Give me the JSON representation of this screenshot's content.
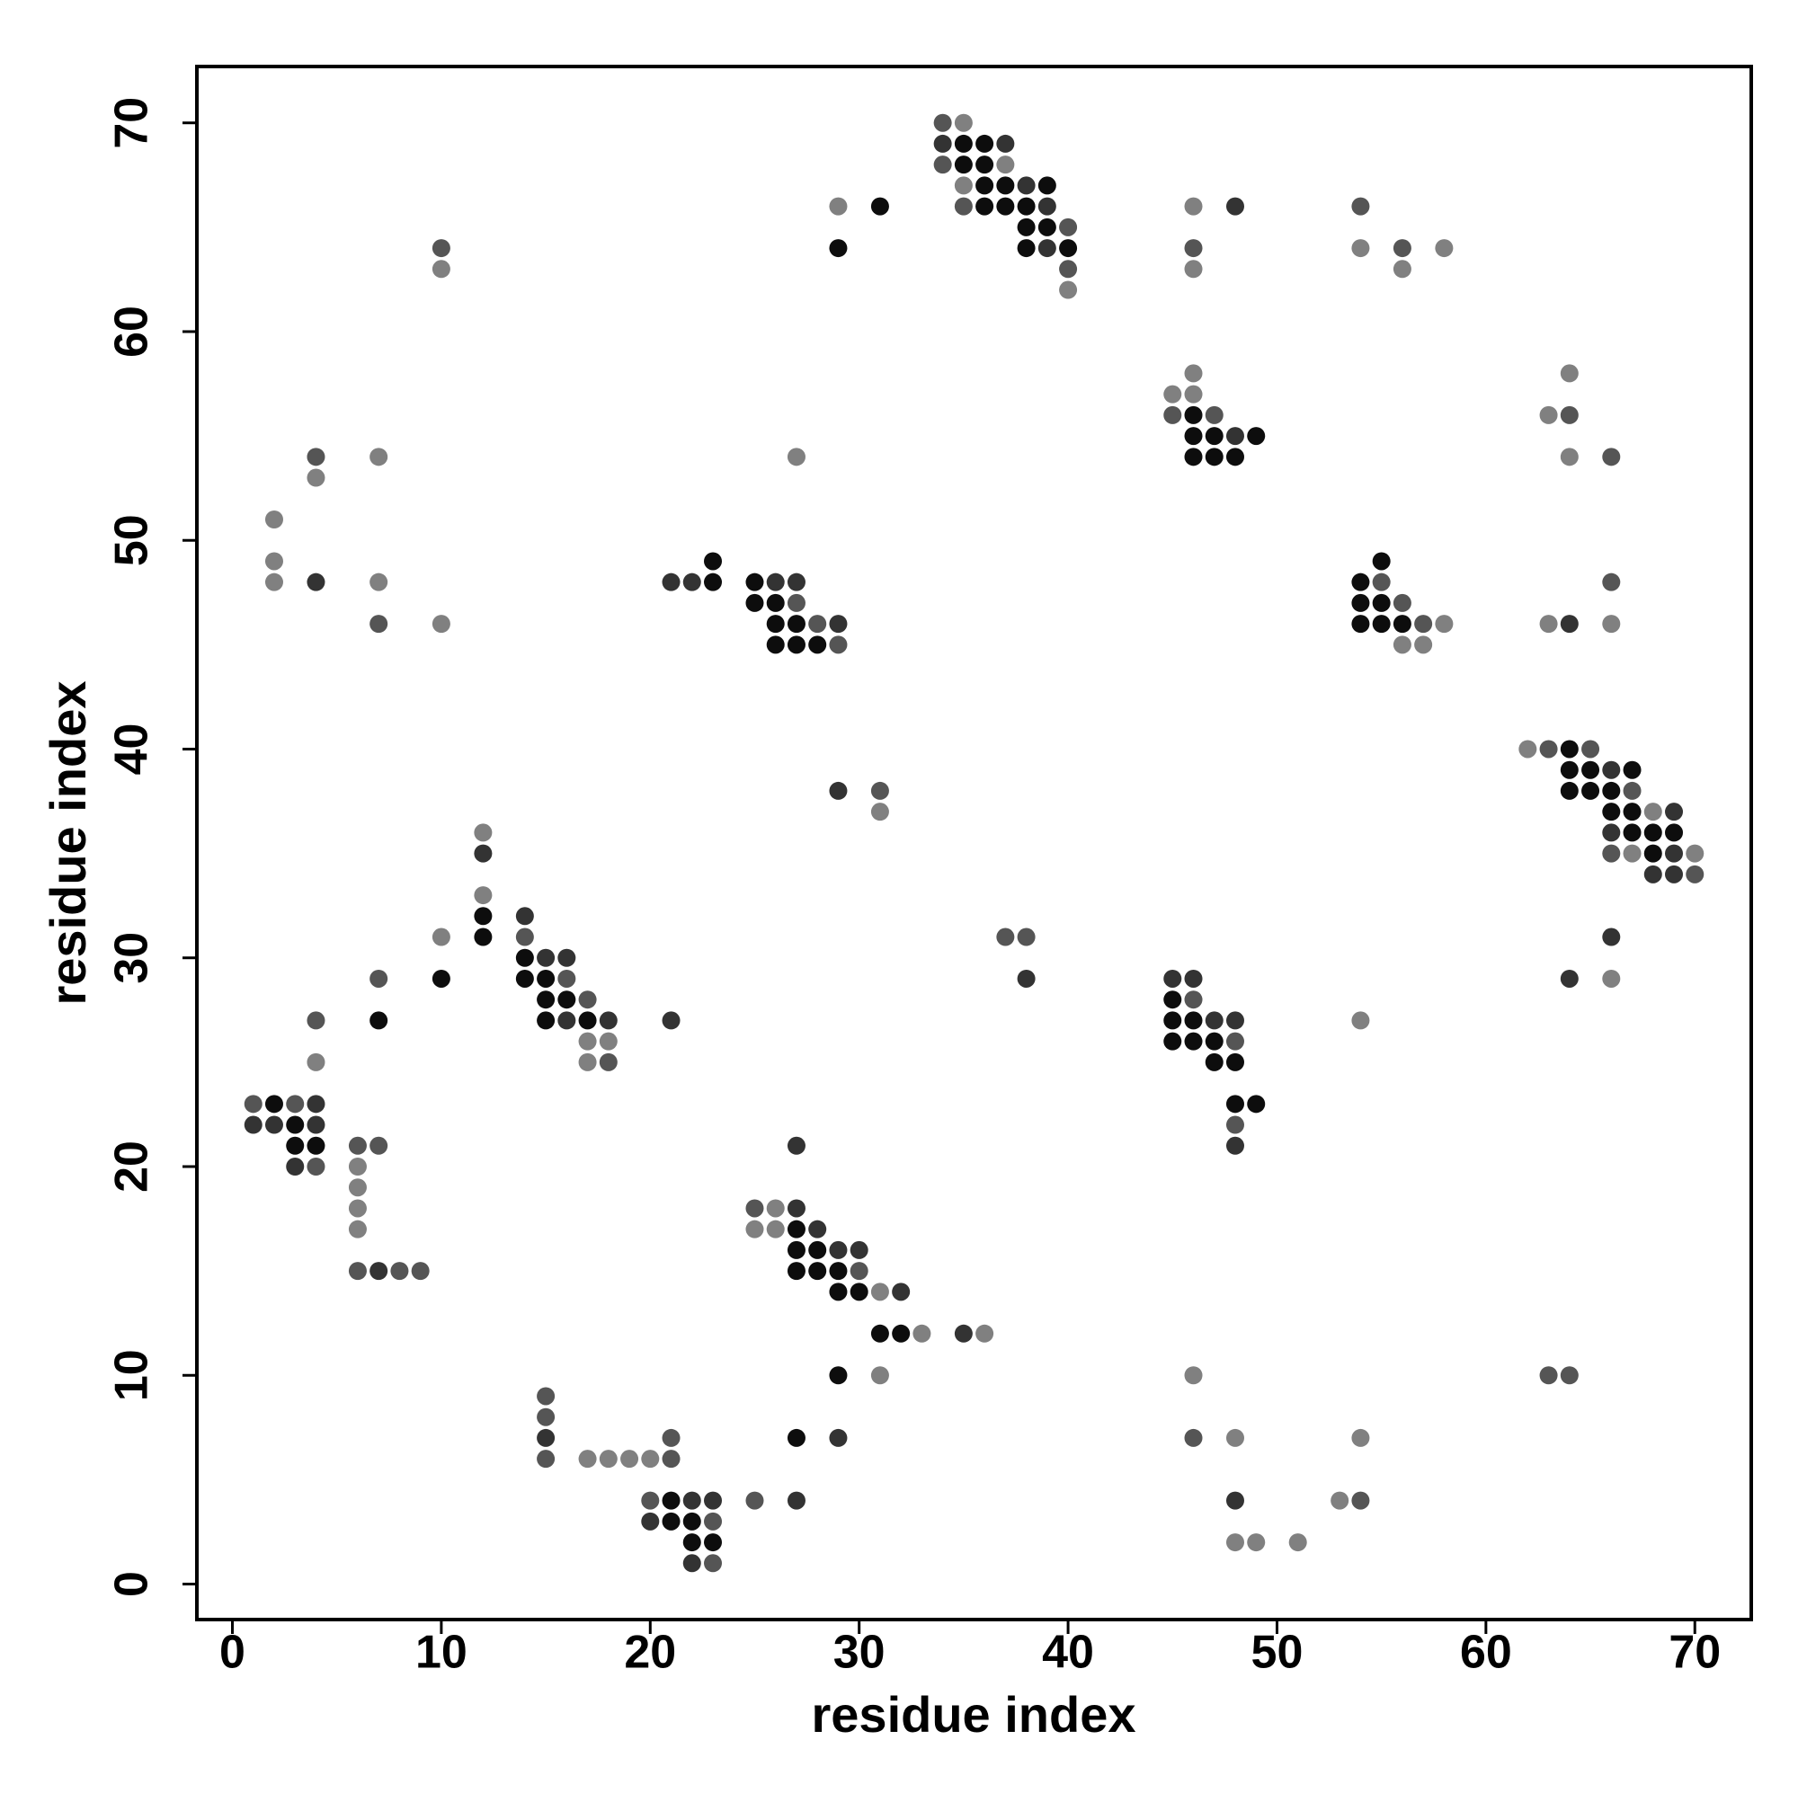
{
  "chart_data": {
    "type": "scatter",
    "xlabel": "residue index",
    "ylabel": "residue index",
    "xlim": [
      -1.7,
      72.7
    ],
    "ylim": [
      -1.7,
      72.7
    ],
    "xticks": [
      0,
      10,
      20,
      30,
      40,
      50,
      60,
      70
    ],
    "yticks": [
      0,
      10,
      20,
      30,
      40,
      50,
      60,
      70
    ],
    "series": [
      {
        "color": "#0d0d0d",
        "x": [
          36,
          35,
          35,
          36,
          36,
          37,
          39,
          36,
          37,
          38,
          38,
          39,
          38,
          40,
          29,
          31,
          46,
          46,
          47,
          49,
          46,
          47,
          48,
          23,
          23,
          25,
          25,
          26,
          26,
          27,
          26,
          27,
          28,
          55,
          54,
          54,
          55,
          54,
          55,
          56,
          64,
          64,
          65,
          67,
          64,
          65,
          66,
          66,
          67,
          67,
          68,
          69,
          68,
          12,
          12,
          10,
          14,
          14,
          15,
          15,
          16,
          15,
          17,
          7,
          2,
          3,
          3,
          4,
          45,
          45,
          46,
          45,
          46,
          47,
          47,
          48,
          48,
          49,
          27,
          27,
          28,
          27,
          28,
          29,
          29,
          30,
          31,
          32,
          29,
          21,
          21,
          22,
          22,
          23,
          27
        ],
        "values": [
          69,
          69,
          68,
          68,
          67,
          67,
          67,
          66,
          66,
          66,
          65,
          65,
          64,
          64,
          64,
          66,
          56,
          55,
          55,
          55,
          54,
          54,
          54,
          49,
          48,
          48,
          47,
          47,
          46,
          46,
          45,
          45,
          45,
          49,
          48,
          47,
          47,
          46,
          46,
          46,
          40,
          39,
          39,
          39,
          38,
          38,
          38,
          37,
          37,
          36,
          36,
          36,
          35,
          32,
          31,
          29,
          30,
          29,
          29,
          28,
          28,
          27,
          27,
          27,
          23,
          22,
          21,
          21,
          28,
          27,
          27,
          26,
          26,
          26,
          25,
          25,
          23,
          23,
          17,
          16,
          16,
          15,
          15,
          15,
          14,
          14,
          12,
          12,
          10,
          4,
          3,
          3,
          2,
          2,
          7
        ]
      },
      {
        "color": "#333333",
        "x": [
          34,
          37,
          38,
          39,
          39,
          48,
          48,
          4,
          21,
          22,
          26,
          27,
          29,
          64,
          66,
          69,
          66,
          69,
          68,
          69,
          66,
          64,
          29,
          38,
          12,
          14,
          15,
          16,
          16,
          18,
          21,
          4,
          1,
          2,
          4,
          3,
          7,
          45,
          46,
          47,
          48,
          48,
          27,
          27,
          28,
          29,
          30,
          32,
          35,
          15,
          22,
          23,
          20,
          22,
          27,
          29,
          48
        ],
        "values": [
          69,
          69,
          67,
          66,
          64,
          66,
          55,
          48,
          48,
          48,
          48,
          48,
          46,
          46,
          39,
          37,
          36,
          35,
          34,
          34,
          31,
          29,
          38,
          29,
          35,
          32,
          30,
          30,
          27,
          27,
          27,
          23,
          22,
          22,
          22,
          20,
          15,
          29,
          29,
          27,
          27,
          21,
          21,
          18,
          17,
          16,
          16,
          14,
          12,
          7,
          4,
          4,
          3,
          1,
          4,
          7,
          4
        ]
      },
      {
        "color": "#555555",
        "x": [
          34,
          34,
          35,
          40,
          40,
          46,
          54,
          56,
          10,
          45,
          47,
          64,
          66,
          4,
          7,
          27,
          28,
          29,
          55,
          56,
          57,
          66,
          63,
          65,
          67,
          66,
          70,
          31,
          37,
          38,
          14,
          16,
          17,
          18,
          7,
          4,
          1,
          3,
          4,
          6,
          7,
          6,
          8,
          9,
          46,
          48,
          48,
          25,
          30,
          15,
          15,
          15,
          21,
          21,
          20,
          23,
          23,
          25,
          46,
          54,
          63,
          64
        ],
        "values": [
          70,
          68,
          66,
          65,
          63,
          64,
          66,
          64,
          64,
          56,
          56,
          56,
          54,
          54,
          46,
          47,
          46,
          45,
          48,
          47,
          46,
          48,
          40,
          40,
          38,
          35,
          34,
          38,
          31,
          31,
          31,
          29,
          28,
          25,
          29,
          27,
          23,
          23,
          20,
          21,
          21,
          15,
          15,
          15,
          28,
          26,
          22,
          18,
          15,
          9,
          8,
          6,
          6,
          7,
          4,
          3,
          1,
          4,
          7,
          4,
          10,
          10
        ]
      },
      {
        "color": "#808080",
        "x": [
          35,
          37,
          35,
          40,
          29,
          46,
          46,
          54,
          56,
          58,
          10,
          46,
          45,
          46,
          64,
          63,
          64,
          2,
          2,
          2,
          4,
          7,
          7,
          10,
          27,
          58,
          56,
          57,
          63,
          66,
          62,
          68,
          67,
          70,
          66,
          31,
          12,
          12,
          10,
          17,
          18,
          17,
          4,
          6,
          6,
          6,
          6,
          54,
          26,
          25,
          26,
          31,
          33,
          36,
          31,
          17,
          18,
          19,
          20,
          46,
          48,
          48,
          49,
          51,
          53,
          54
        ],
        "values": [
          70,
          68,
          67,
          62,
          66,
          66,
          63,
          64,
          63,
          64,
          63,
          58,
          57,
          57,
          58,
          56,
          54,
          51,
          49,
          48,
          53,
          54,
          48,
          46,
          54,
          46,
          45,
          45,
          46,
          46,
          40,
          37,
          35,
          35,
          29,
          37,
          36,
          33,
          31,
          26,
          26,
          25,
          25,
          20,
          19,
          18,
          17,
          27,
          18,
          17,
          17,
          14,
          12,
          12,
          10,
          6,
          6,
          6,
          6,
          10,
          7,
          2,
          2,
          2,
          4,
          7
        ]
      }
    ]
  }
}
